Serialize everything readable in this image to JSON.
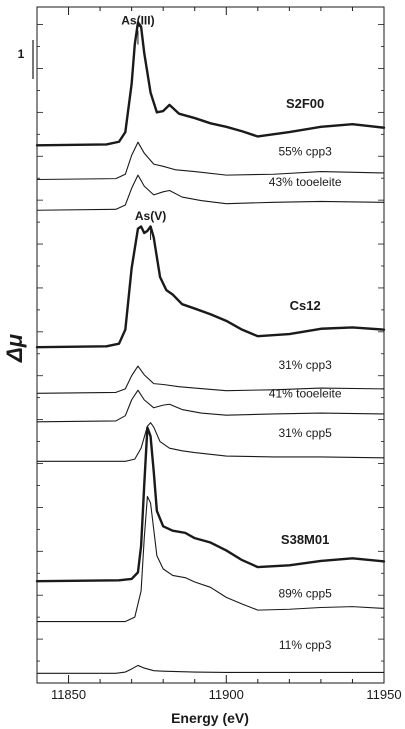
{
  "chart_data": {
    "type": "line",
    "title": "",
    "xlabel": "Energy (eV)",
    "ylabel": "Δμ",
    "xlim": [
      11840,
      11950
    ],
    "x_ticks": [
      11850,
      11900,
      11950
    ],
    "scale_bar_label": "1",
    "grid": false,
    "legend": "none",
    "annotations": [
      {
        "text": "As(III)",
        "x": 11872
      },
      {
        "text": "As(V)",
        "x": 11876
      }
    ],
    "series": [
      {
        "name": "S2F00",
        "bold": true,
        "offset": 12.25,
        "points": [
          [
            11840,
            0.0
          ],
          [
            11862,
            0.02
          ],
          [
            11866,
            0.08
          ],
          [
            11868,
            0.3
          ],
          [
            11870,
            1.4
          ],
          [
            11871,
            2.3
          ],
          [
            11872,
            2.8
          ],
          [
            11873,
            2.7
          ],
          [
            11874,
            2.1
          ],
          [
            11876,
            1.2
          ],
          [
            11878,
            0.75
          ],
          [
            11880,
            0.78
          ],
          [
            11882,
            0.92
          ],
          [
            11885,
            0.72
          ],
          [
            11890,
            0.62
          ],
          [
            11895,
            0.5
          ],
          [
            11900,
            0.42
          ],
          [
            11905,
            0.32
          ],
          [
            11910,
            0.2
          ],
          [
            11920,
            0.3
          ],
          [
            11930,
            0.42
          ],
          [
            11940,
            0.48
          ],
          [
            11950,
            0.4
          ]
        ]
      },
      {
        "name": "55% cpp3",
        "bold": false,
        "offset": 11.47,
        "points": [
          [
            11840,
            0.0
          ],
          [
            11865,
            0.02
          ],
          [
            11868,
            0.12
          ],
          [
            11870,
            0.55
          ],
          [
            11872,
            0.85
          ],
          [
            11874,
            0.6
          ],
          [
            11877,
            0.35
          ],
          [
            11880,
            0.3
          ],
          [
            11884,
            0.22
          ],
          [
            11890,
            0.18
          ],
          [
            11900,
            0.1
          ],
          [
            11915,
            0.12
          ],
          [
            11930,
            0.18
          ],
          [
            11950,
            0.15
          ]
        ]
      },
      {
        "name": "43% tooeleite",
        "bold": false,
        "offset": 10.77,
        "points": [
          [
            11840,
            0.0
          ],
          [
            11865,
            0.02
          ],
          [
            11868,
            0.12
          ],
          [
            11870,
            0.5
          ],
          [
            11872,
            0.8
          ],
          [
            11874,
            0.55
          ],
          [
            11877,
            0.35
          ],
          [
            11880,
            0.42
          ],
          [
            11882,
            0.45
          ],
          [
            11886,
            0.3
          ],
          [
            11892,
            0.22
          ],
          [
            11900,
            0.15
          ],
          [
            11915,
            0.18
          ],
          [
            11930,
            0.2
          ],
          [
            11950,
            0.18
          ]
        ]
      },
      {
        "name": "Cs12",
        "bold": true,
        "offset": 7.65,
        "points": [
          [
            11840,
            0.0
          ],
          [
            11862,
            0.02
          ],
          [
            11866,
            0.08
          ],
          [
            11868,
            0.4
          ],
          [
            11870,
            1.8
          ],
          [
            11872,
            2.7
          ],
          [
            11873,
            2.75
          ],
          [
            11874,
            2.6
          ],
          [
            11875,
            2.65
          ],
          [
            11876,
            2.75
          ],
          [
            11877,
            2.5
          ],
          [
            11879,
            1.6
          ],
          [
            11881,
            1.3
          ],
          [
            11883,
            1.2
          ],
          [
            11886,
            0.98
          ],
          [
            11890,
            0.88
          ],
          [
            11895,
            0.75
          ],
          [
            11900,
            0.6
          ],
          [
            11905,
            0.4
          ],
          [
            11910,
            0.25
          ],
          [
            11920,
            0.3
          ],
          [
            11930,
            0.42
          ],
          [
            11940,
            0.45
          ],
          [
            11950,
            0.4
          ]
        ]
      },
      {
        "name": "31% cpp3",
        "bold": false,
        "offset": 6.6,
        "points": [
          [
            11840,
            0.0
          ],
          [
            11865,
            0.02
          ],
          [
            11868,
            0.1
          ],
          [
            11870,
            0.4
          ],
          [
            11872,
            0.62
          ],
          [
            11874,
            0.42
          ],
          [
            11877,
            0.22
          ],
          [
            11880,
            0.2
          ],
          [
            11885,
            0.15
          ],
          [
            11890,
            0.12
          ],
          [
            11900,
            0.06
          ],
          [
            11915,
            0.08
          ],
          [
            11930,
            0.12
          ],
          [
            11950,
            0.1
          ]
        ]
      },
      {
        "name": "41% tooeleite",
        "bold": false,
        "offset": 5.95,
        "points": [
          [
            11840,
            0.0
          ],
          [
            11865,
            0.02
          ],
          [
            11868,
            0.14
          ],
          [
            11870,
            0.5
          ],
          [
            11872,
            0.72
          ],
          [
            11874,
            0.5
          ],
          [
            11877,
            0.32
          ],
          [
            11880,
            0.38
          ],
          [
            11882,
            0.4
          ],
          [
            11886,
            0.28
          ],
          [
            11892,
            0.2
          ],
          [
            11900,
            0.15
          ],
          [
            11915,
            0.18
          ],
          [
            11930,
            0.2
          ],
          [
            11950,
            0.18
          ]
        ]
      },
      {
        "name": "31% cpp5",
        "bold": false,
        "offset": 5.05,
        "points": [
          [
            11840,
            0.0
          ],
          [
            11868,
            0.0
          ],
          [
            11871,
            0.05
          ],
          [
            11873,
            0.3
          ],
          [
            11875,
            0.8
          ],
          [
            11876,
            0.88
          ],
          [
            11877,
            0.78
          ],
          [
            11879,
            0.45
          ],
          [
            11882,
            0.3
          ],
          [
            11886,
            0.24
          ],
          [
            11890,
            0.2
          ],
          [
            11900,
            0.12
          ],
          [
            11915,
            0.1
          ],
          [
            11930,
            0.1
          ],
          [
            11950,
            0.08
          ]
        ]
      },
      {
        "name": "S38M01",
        "bold": true,
        "offset": 2.32,
        "points": [
          [
            11840,
            0.0
          ],
          [
            11866,
            0.02
          ],
          [
            11870,
            0.05
          ],
          [
            11872,
            0.2
          ],
          [
            11873,
            0.8
          ],
          [
            11874,
            2.2
          ],
          [
            11875,
            3.5
          ],
          [
            11876,
            3.3
          ],
          [
            11877,
            2.5
          ],
          [
            11878,
            1.6
          ],
          [
            11880,
            1.25
          ],
          [
            11883,
            1.15
          ],
          [
            11887,
            1.1
          ],
          [
            11890,
            0.98
          ],
          [
            11895,
            0.88
          ],
          [
            11900,
            0.7
          ],
          [
            11905,
            0.48
          ],
          [
            11910,
            0.32
          ],
          [
            11920,
            0.36
          ],
          [
            11930,
            0.46
          ],
          [
            11940,
            0.52
          ],
          [
            11950,
            0.45
          ]
        ]
      },
      {
        "name": "89% cpp5",
        "bold": false,
        "offset": 1.4,
        "points": [
          [
            11840,
            0.0
          ],
          [
            11868,
            0.0
          ],
          [
            11871,
            0.1
          ],
          [
            11873,
            0.7
          ],
          [
            11874,
            1.9
          ],
          [
            11875,
            2.85
          ],
          [
            11876,
            2.7
          ],
          [
            11877,
            2.1
          ],
          [
            11878,
            1.5
          ],
          [
            11880,
            1.2
          ],
          [
            11883,
            1.05
          ],
          [
            11887,
            1.0
          ],
          [
            11890,
            0.9
          ],
          [
            11895,
            0.78
          ],
          [
            11900,
            0.55
          ],
          [
            11905,
            0.4
          ],
          [
            11910,
            0.26
          ],
          [
            11920,
            0.28
          ],
          [
            11930,
            0.32
          ],
          [
            11940,
            0.34
          ],
          [
            11950,
            0.3
          ]
        ]
      },
      {
        "name": "11% cpp3",
        "bold": false,
        "offset": 0.22,
        "points": [
          [
            11840,
            0.0
          ],
          [
            11865,
            0.0
          ],
          [
            11868,
            0.03
          ],
          [
            11870,
            0.1
          ],
          [
            11872,
            0.18
          ],
          [
            11874,
            0.12
          ],
          [
            11877,
            0.06
          ],
          [
            11880,
            0.05
          ],
          [
            11890,
            0.03
          ],
          [
            11900,
            0.02
          ],
          [
            11920,
            0.02
          ],
          [
            11950,
            0.02
          ]
        ]
      }
    ]
  }
}
